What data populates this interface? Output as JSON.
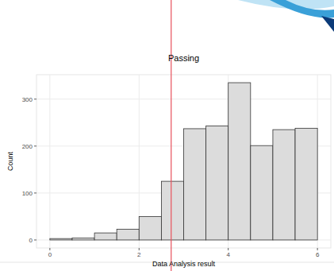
{
  "chart_data": {
    "type": "histogram",
    "title": "Passing",
    "x_label": "Data Analysis result",
    "y_label": "Count",
    "bins": [
      0,
      0.5,
      1,
      1.5,
      2,
      2.5,
      3,
      3.5,
      4,
      4.5,
      5,
      5.5,
      6
    ],
    "values": [
      3,
      4,
      15,
      23,
      50,
      125,
      237,
      243,
      335,
      201,
      235,
      238
    ],
    "color": "#dcdcdc",
    "xlim": [
      -0.3,
      6.3
    ],
    "ylim": [
      -17,
      352
    ],
    "xticks": [
      0,
      2,
      4,
      6
    ],
    "yticks": [
      0,
      100,
      200,
      300
    ],
    "grid": true,
    "reference_line": {
      "value": 2.72,
      "color": "#e8505b"
    }
  }
}
